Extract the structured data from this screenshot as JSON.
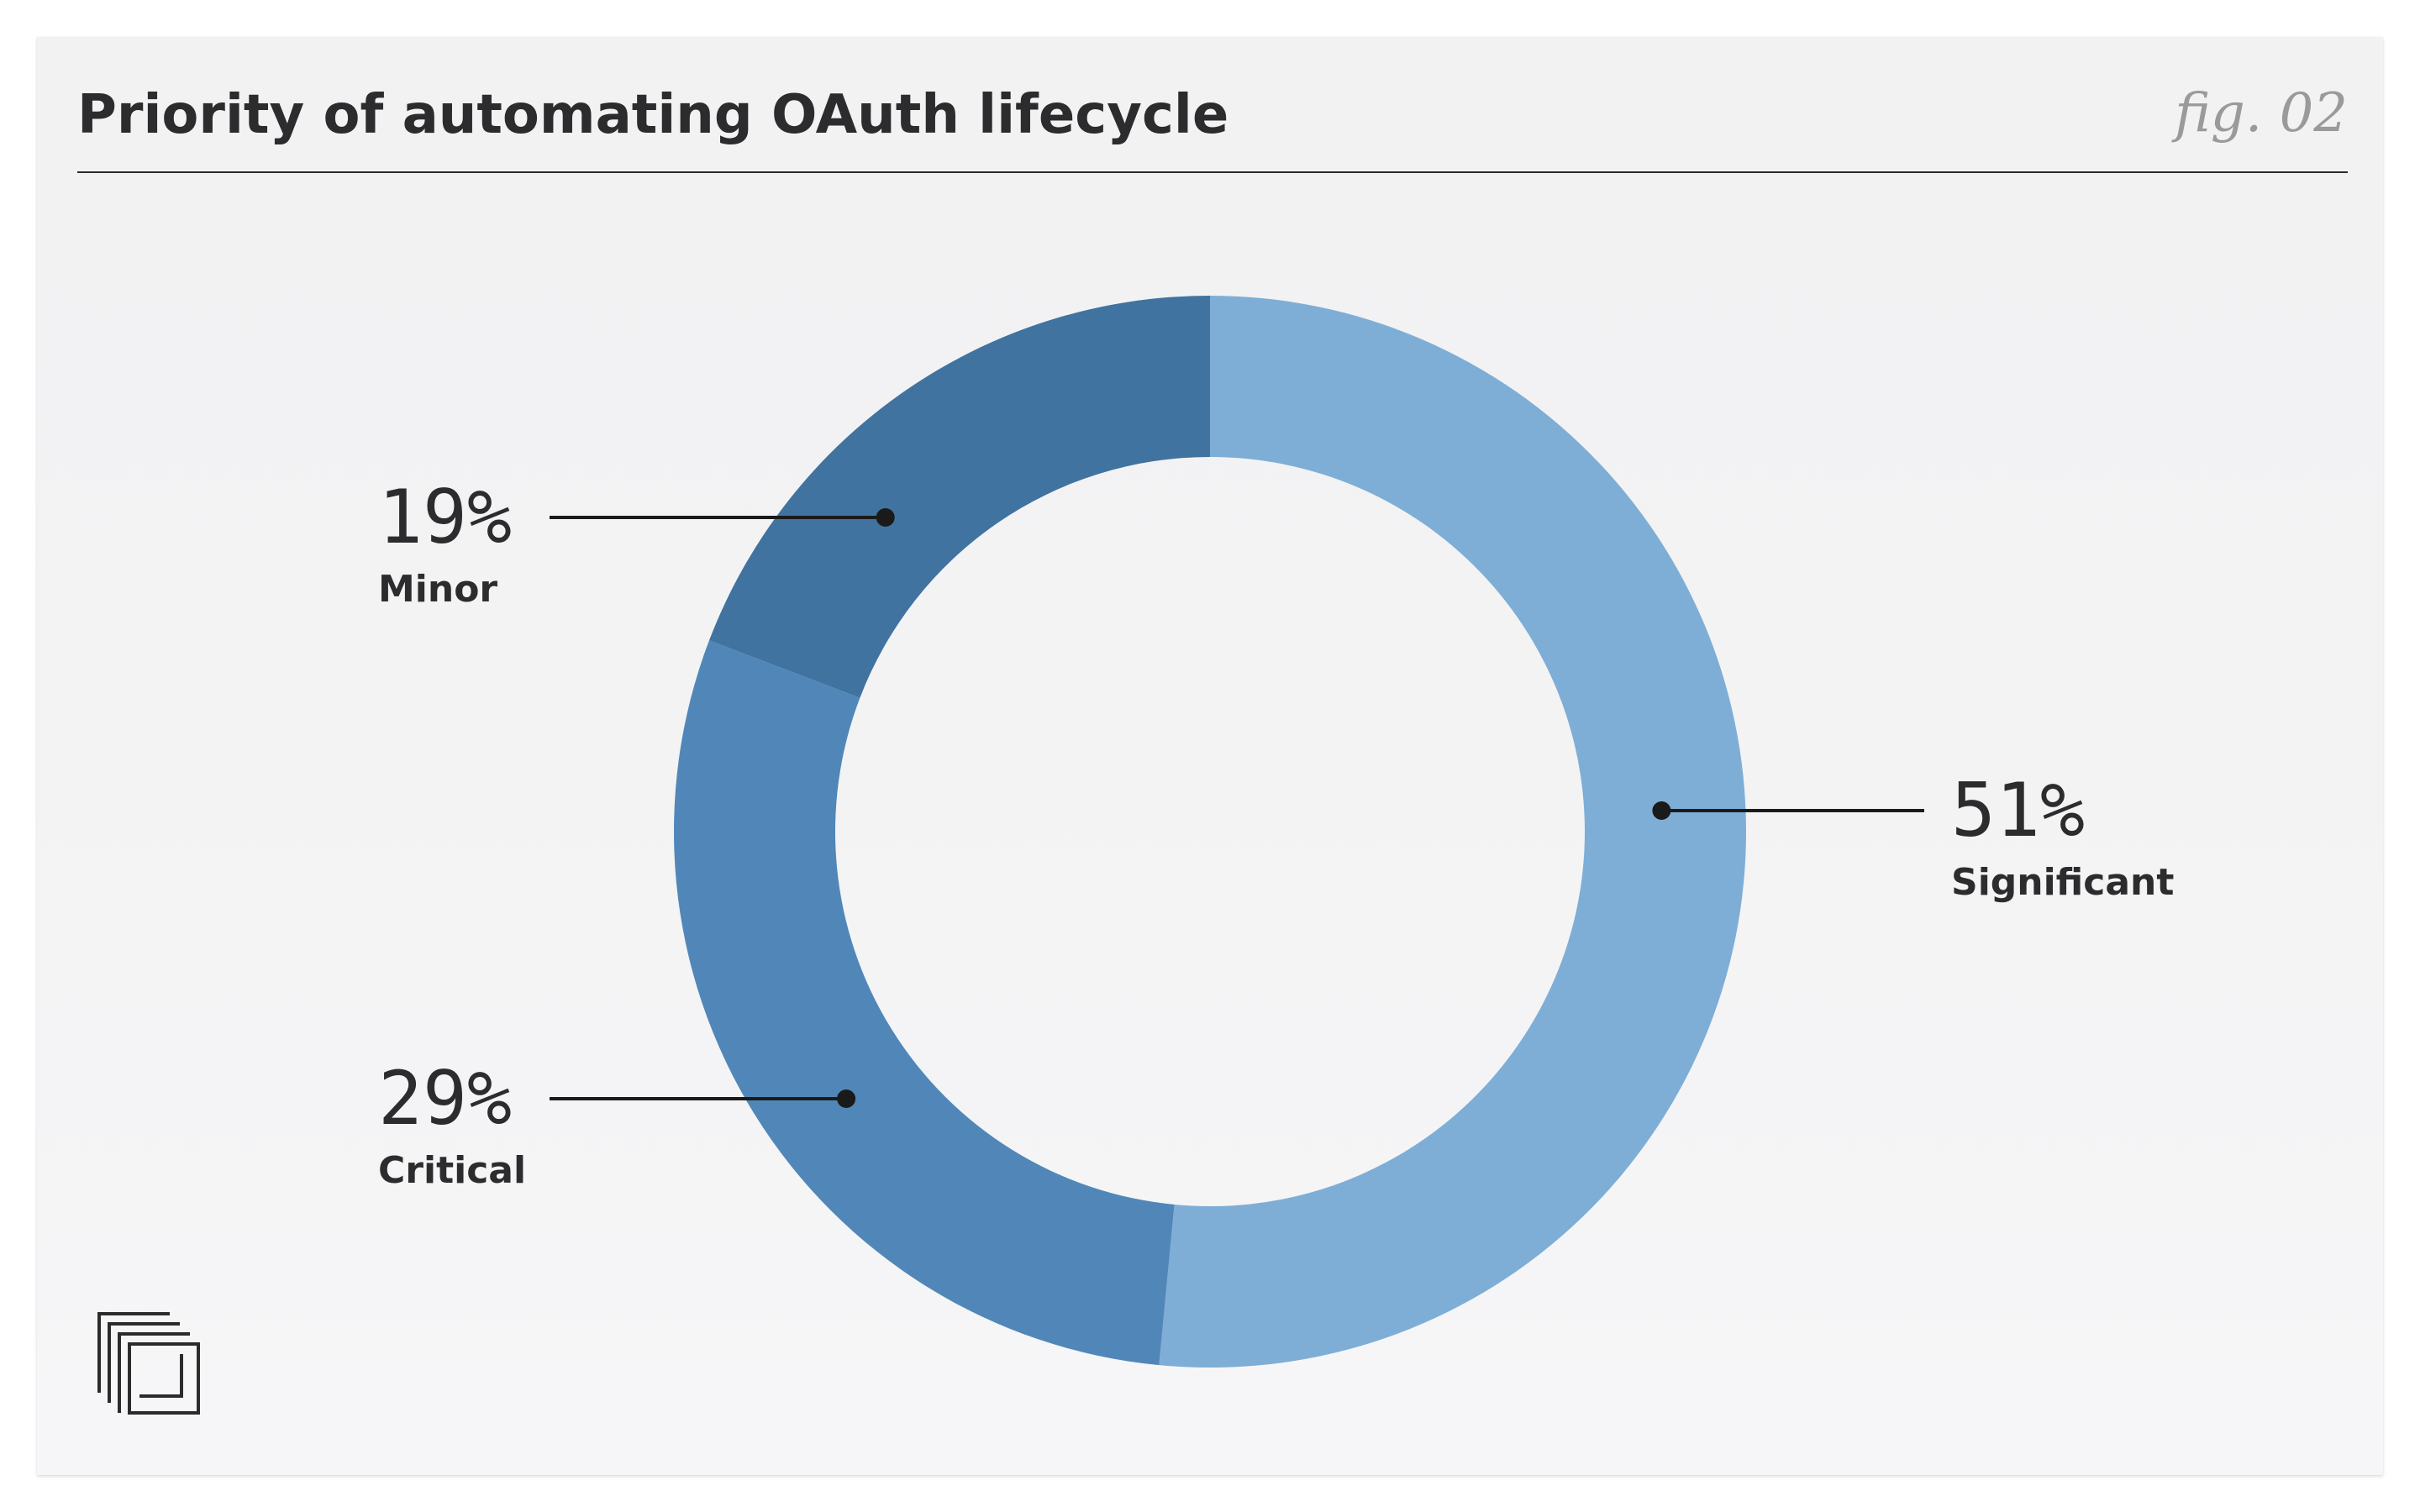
{
  "header": {
    "title": "Priority of automating OAuth lifecycle",
    "fig_label": "fig. 02"
  },
  "chart_data": {
    "type": "pie",
    "variant": "donut",
    "title": "Priority of automating OAuth lifecycle",
    "start_angle_deg": 0,
    "direction": "clockwise",
    "slices": [
      {
        "label": "Significant",
        "value": 51,
        "value_label": "51%",
        "color": "#7eaed6",
        "label_side": "right"
      },
      {
        "label": "Critical",
        "value": 29,
        "value_label": "29%",
        "color": "#5187b8",
        "label_side": "left"
      },
      {
        "label": "Minor",
        "value": 19,
        "value_label": "19%",
        "color": "#40739f",
        "label_side": "left"
      }
    ]
  },
  "colors": {
    "background": "#f3f3f4",
    "text": "#2c2c2e",
    "leader": "#1a1a1a",
    "fig_label": "#9a9a9a"
  },
  "icons": {
    "logo": "stacked-squares-logo"
  }
}
